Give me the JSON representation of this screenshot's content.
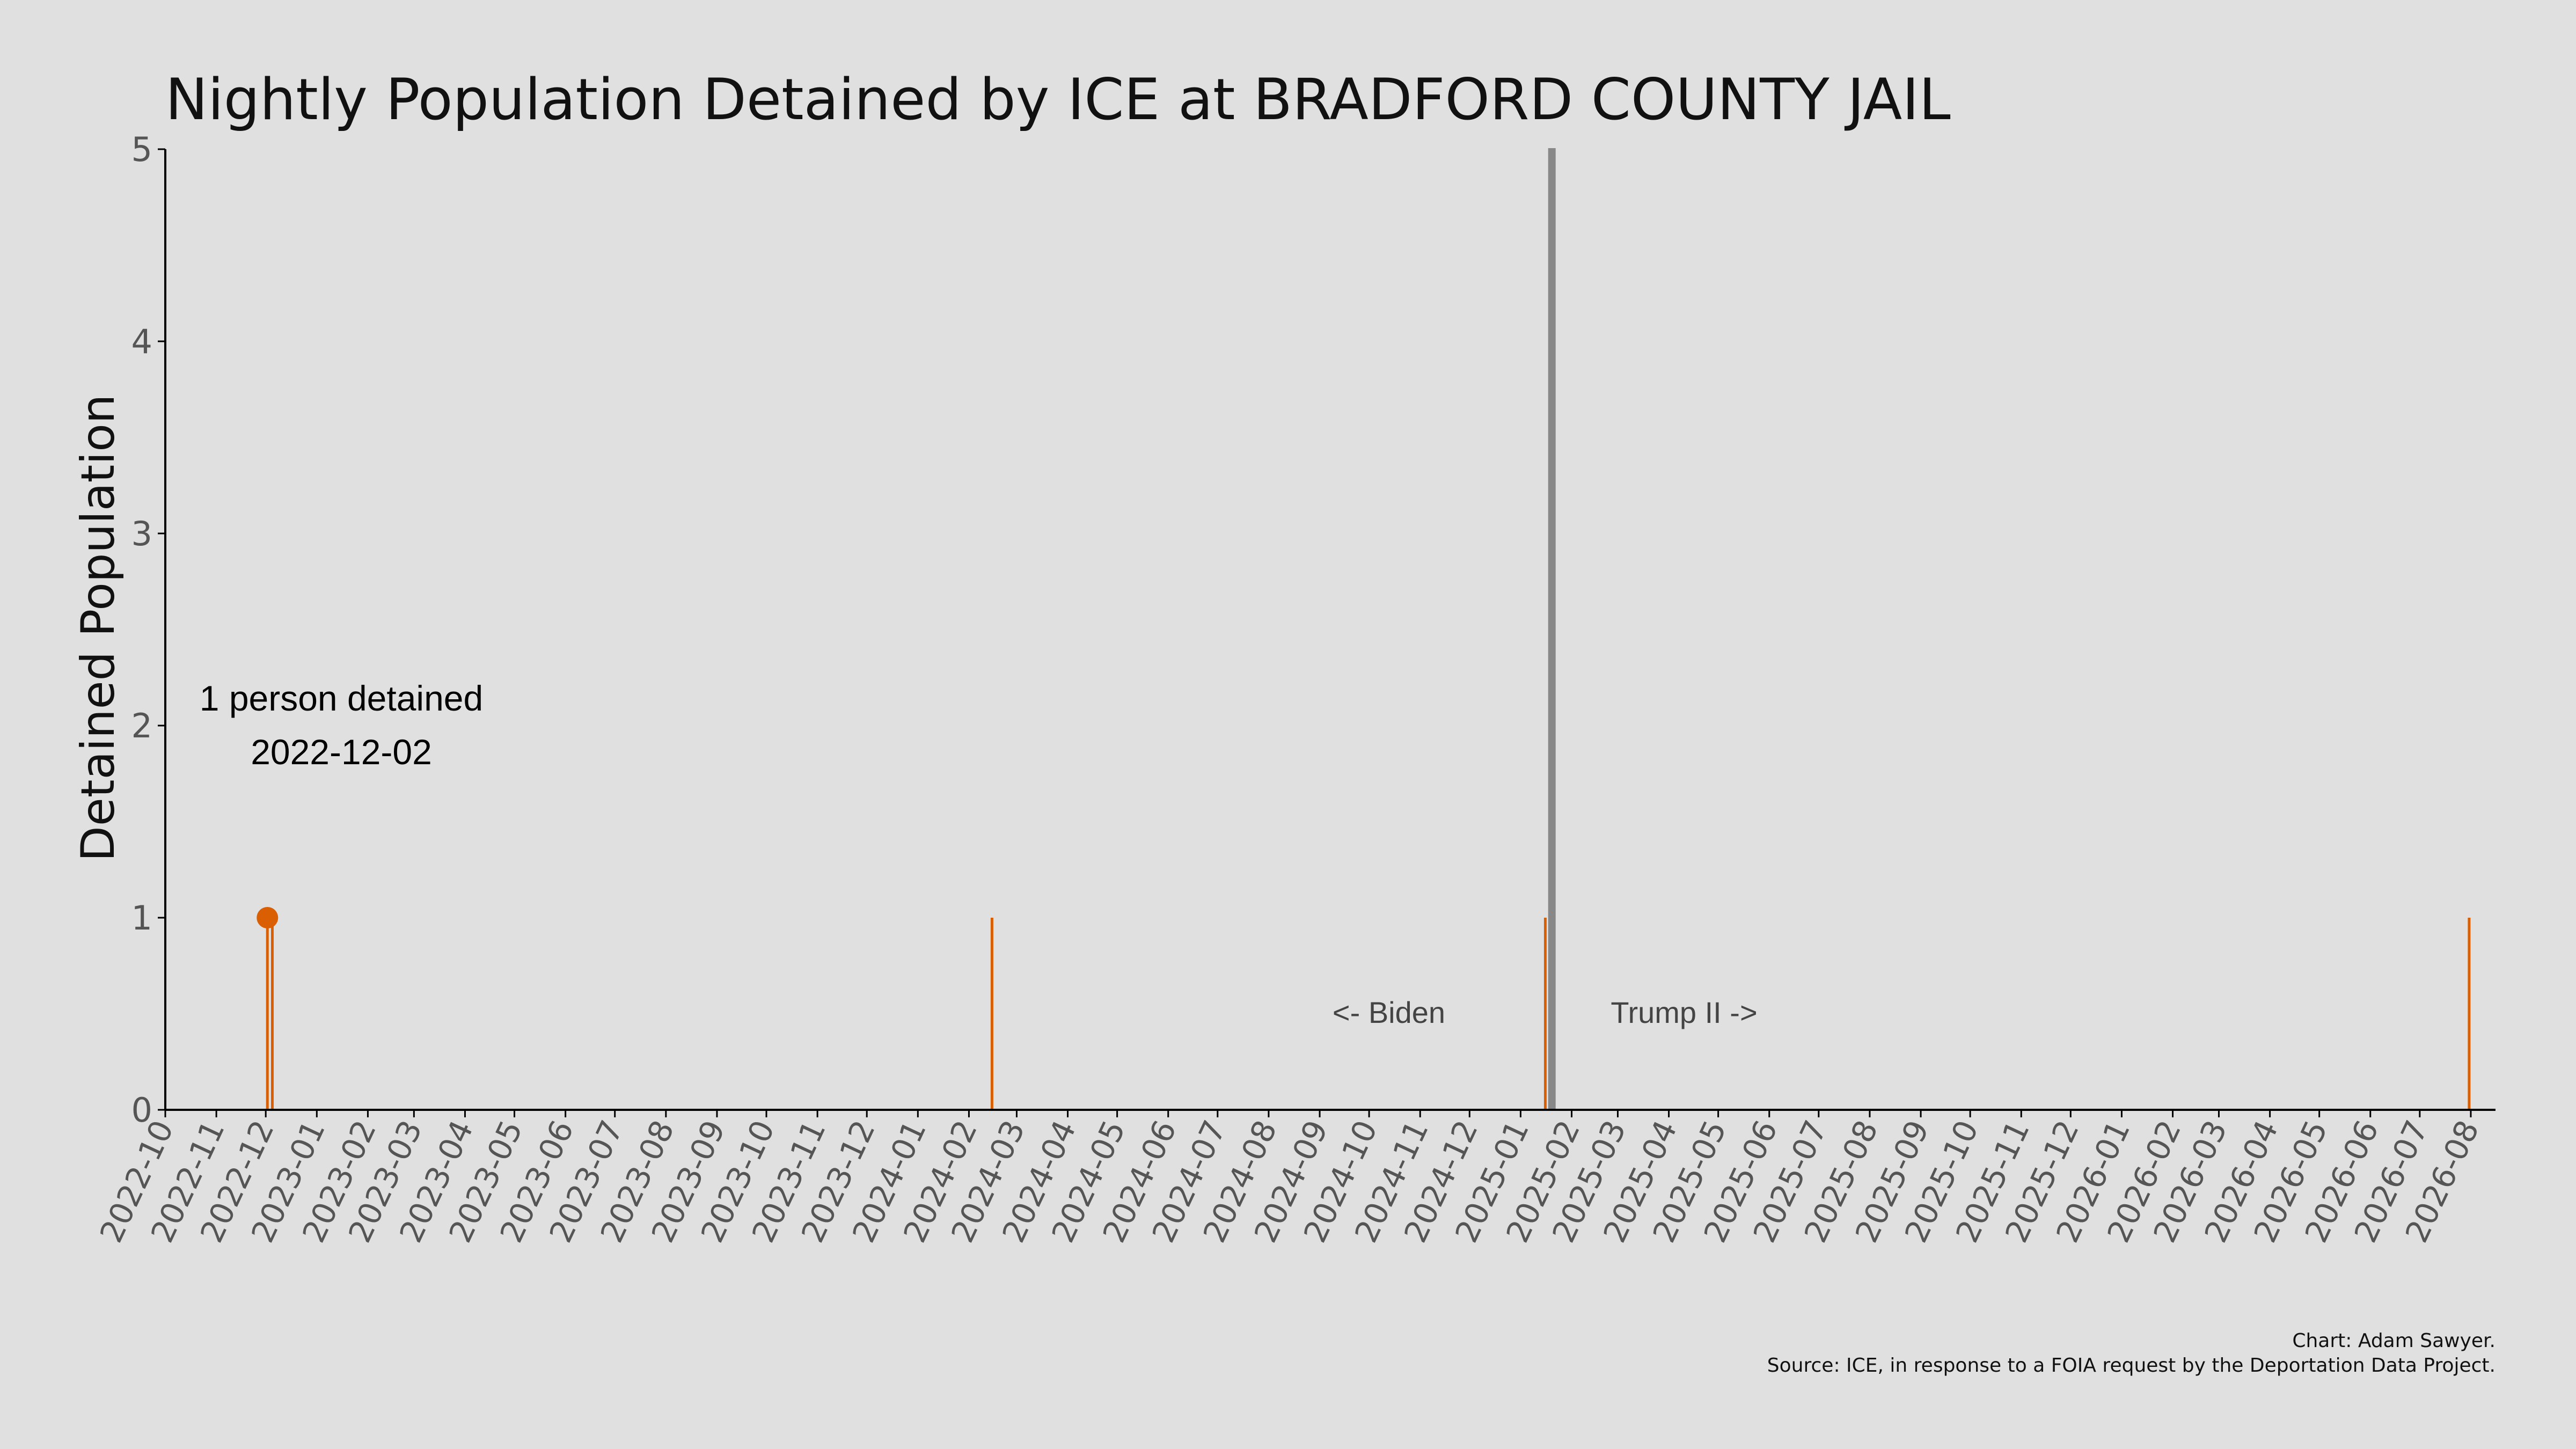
{
  "chart_data": {
    "type": "bar",
    "title": "Nightly Population Detained by ICE at BRADFORD COUNTY JAIL",
    "xlabel": "",
    "ylabel": "Detained Population",
    "x_range": [
      "2022-10-01",
      "2026-08-16"
    ],
    "ylim": [
      0,
      5
    ],
    "yticks": [
      0,
      1,
      2,
      3,
      4,
      5
    ],
    "xticks": [
      "2022-10",
      "2022-11",
      "2022-12",
      "2023-01",
      "2023-02",
      "2023-03",
      "2023-04",
      "2023-05",
      "2023-06",
      "2023-07",
      "2023-08",
      "2023-09",
      "2023-10",
      "2023-11",
      "2023-12",
      "2024-01",
      "2024-02",
      "2024-03",
      "2024-04",
      "2024-05",
      "2024-06",
      "2024-07",
      "2024-08",
      "2024-09",
      "2024-10",
      "2024-11",
      "2024-12",
      "2025-01",
      "2025-02",
      "2025-03",
      "2025-04",
      "2025-05",
      "2025-06",
      "2025-07",
      "2025-08",
      "2025-09",
      "2025-10",
      "2025-11",
      "2025-12",
      "2026-01",
      "2026-02",
      "2026-03",
      "2026-04",
      "2026-05",
      "2026-06",
      "2026-07",
      "2026-08"
    ],
    "series": [
      {
        "color": "#d95f02",
        "points": [
          {
            "date": "2022-12-02",
            "value": 1
          },
          {
            "date": "2022-12-05",
            "value": 1
          },
          {
            "date": "2024-02-15",
            "value": 1
          },
          {
            "date": "2025-01-16",
            "value": 1
          },
          {
            "date": "2026-07-31",
            "value": 1
          }
        ]
      }
    ],
    "highlight": {
      "date": "2022-12-02",
      "value": 1,
      "color": "#d95f02"
    },
    "annotation": {
      "line1": "1 person detained",
      "line2": "2022-12-02"
    },
    "divider": {
      "date": "2025-01-20",
      "color": "#888888"
    },
    "era_labels": {
      "left": "<- Biden",
      "right": "Trump II ->"
    },
    "grid": false,
    "legend": "none"
  },
  "credits": {
    "line1": "Chart: Adam Sawyer.",
    "line2": "Source: ICE, in response to a FOIA request by the Deportation Data Project."
  }
}
